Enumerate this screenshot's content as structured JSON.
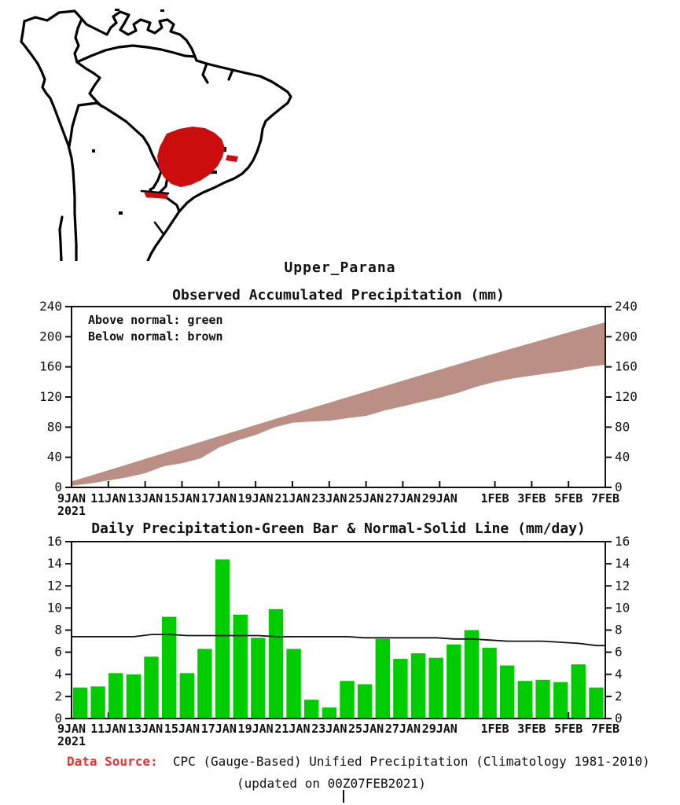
{
  "title": "Upper_Parana",
  "map": {
    "name": "South America basin locator map",
    "highlight_region": "Upper Parana basin",
    "highlight_color": "#CC0D0D",
    "outline_color": "#000000"
  },
  "chart_data": [
    {
      "type": "area",
      "title": "Observed Accumulated Precipitation (mm)",
      "legend": [
        "Above normal: green",
        "Below normal: brown"
      ],
      "band_color": "#BB8F85",
      "ylim": [
        0,
        240
      ],
      "yticks": [
        0,
        40,
        80,
        120,
        160,
        200,
        240
      ],
      "x_dates": [
        "9JAN",
        "10JAN",
        "11JAN",
        "12JAN",
        "13JAN",
        "14JAN",
        "15JAN",
        "16JAN",
        "17JAN",
        "18JAN",
        "19JAN",
        "20JAN",
        "21JAN",
        "22JAN",
        "23JAN",
        "24JAN",
        "25JAN",
        "26JAN",
        "27JAN",
        "28JAN",
        "29JAN",
        "30JAN",
        "31JAN",
        "1FEB",
        "2FEB",
        "3FEB",
        "4FEB",
        "5FEB",
        "6FEB",
        "7FEB"
      ],
      "xtick_labels": [
        "9JAN",
        "11JAN",
        "13JAN",
        "15JAN",
        "17JAN",
        "19JAN",
        "21JAN",
        "23JAN",
        "25JAN",
        "27JAN",
        "29JAN",
        "1FEB",
        "3FEB",
        "5FEB",
        "7FEB"
      ],
      "xtick_day_index": [
        0,
        2,
        4,
        6,
        8,
        10,
        12,
        14,
        16,
        18,
        20,
        23,
        25,
        27,
        29
      ],
      "year_label": "2021",
      "series": [
        {
          "name": "Normal accumulated (upper edge)",
          "values": [
            7.4,
            14.8,
            22.2,
            29.6,
            37.2,
            44.8,
            52.3,
            59.8,
            67.3,
            74.8,
            82.3,
            89.7,
            97.1,
            104.5,
            111.9,
            119.3,
            126.6,
            133.9,
            141.2,
            148.5,
            155.8,
            163.0,
            170.2,
            177.3,
            184.3,
            191.3,
            198.3,
            205.2,
            212.0,
            218.6
          ]
        },
        {
          "name": "Observed accumulated (lower edge)",
          "values": [
            2.8,
            5.7,
            9.8,
            13.8,
            19.4,
            28.6,
            32.7,
            39.0,
            53.4,
            62.8,
            70.1,
            80.0,
            86.3,
            88.0,
            89.0,
            92.4,
            95.5,
            102.7,
            108.1,
            114.0,
            119.5,
            126.2,
            134.2,
            140.6,
            145.4,
            148.8,
            152.3,
            155.6,
            160.5,
            163.3
          ]
        }
      ]
    },
    {
      "type": "bar",
      "title": "Daily Precipitation-Green Bar & Normal-Solid Line (mm/day)",
      "bar_color": "#00CD00",
      "line_color": "#111111",
      "ylim": [
        0,
        16
      ],
      "yticks": [
        0,
        2,
        4,
        6,
        8,
        10,
        12,
        14,
        16
      ],
      "categories": [
        "9JAN",
        "10JAN",
        "11JAN",
        "12JAN",
        "13JAN",
        "14JAN",
        "15JAN",
        "16JAN",
        "17JAN",
        "18JAN",
        "19JAN",
        "20JAN",
        "21JAN",
        "22JAN",
        "23JAN",
        "24JAN",
        "25JAN",
        "26JAN",
        "27JAN",
        "28JAN",
        "29JAN",
        "30JAN",
        "31JAN",
        "1FEB",
        "2FEB",
        "3FEB",
        "4FEB",
        "5FEB",
        "6FEB",
        "7FEB"
      ],
      "values": [
        2.8,
        2.9,
        4.1,
        4.0,
        5.6,
        9.2,
        4.1,
        6.3,
        14.4,
        9.4,
        7.3,
        9.9,
        6.3,
        1.7,
        1.0,
        3.4,
        3.1,
        7.2,
        5.4,
        5.9,
        5.5,
        6.7,
        8.0,
        6.4,
        4.8,
        3.4,
        3.5,
        3.3,
        4.9,
        2.8
      ],
      "normal_line": [
        7.4,
        7.4,
        7.4,
        7.4,
        7.6,
        7.6,
        7.5,
        7.5,
        7.5,
        7.5,
        7.5,
        7.4,
        7.4,
        7.4,
        7.4,
        7.4,
        7.3,
        7.3,
        7.3,
        7.3,
        7.3,
        7.2,
        7.2,
        7.1,
        7.0,
        7.0,
        7.0,
        6.9,
        6.8,
        6.6
      ],
      "xtick_labels": [
        "9JAN",
        "11JAN",
        "13JAN",
        "15JAN",
        "17JAN",
        "19JAN",
        "21JAN",
        "23JAN",
        "25JAN",
        "27JAN",
        "29JAN",
        "1FEB",
        "3FEB",
        "5FEB",
        "7FEB"
      ],
      "xtick_day_index": [
        0,
        2,
        4,
        6,
        8,
        10,
        12,
        14,
        16,
        18,
        20,
        23,
        25,
        27,
        29
      ],
      "year_label": "2021"
    }
  ],
  "footer": {
    "source_label": "Data Source:",
    "source_label_color": "#EE3333",
    "source_text": "CPC (Gauge-Based) Unified Precipitation (Climatology 1981-2010)",
    "updated": "(updated on 00Z07FEB2021)",
    "cursor": "|"
  }
}
